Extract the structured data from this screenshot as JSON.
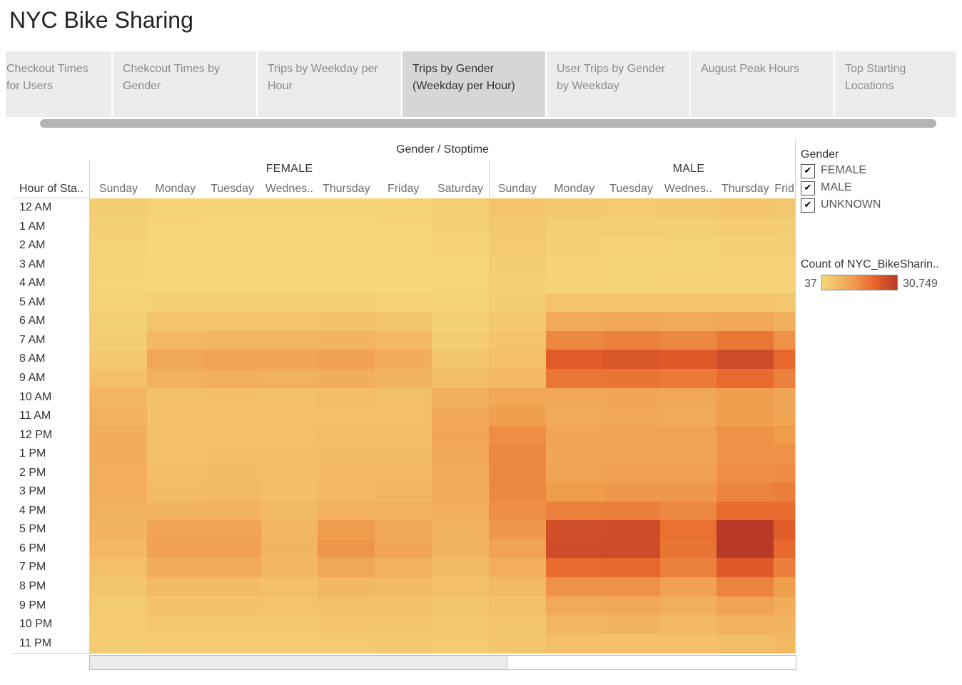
{
  "page": {
    "title": "NYC Bike Sharing"
  },
  "tabs": [
    {
      "line1": "Checkout Times",
      "line2": "for Users",
      "active": false
    },
    {
      "line1": "Chekcout Times by",
      "line2": "Gender",
      "active": false
    },
    {
      "line1": "Trips by Weekday per",
      "line2": "Hour",
      "active": false
    },
    {
      "line1": "Trips by Gender",
      "line2": "(Weekday per Hour)",
      "active": true
    },
    {
      "line1": "User Trips by Gender",
      "line2": "by Weekday",
      "active": false
    },
    {
      "line1": "August Peak Hours",
      "line2": "",
      "active": false
    },
    {
      "line1": "Top Starting",
      "line2": "Locations",
      "active": false
    }
  ],
  "chart_data": {
    "type": "heatmap",
    "title": "Gender / Stoptime",
    "row_header": "Hour of Sta..",
    "rows": [
      "12 AM",
      "1 AM",
      "2 AM",
      "3 AM",
      "4 AM",
      "5 AM",
      "6 AM",
      "7 AM",
      "8 AM",
      "9 AM",
      "10 AM",
      "11 AM",
      "12 PM",
      "1 PM",
      "2 PM",
      "3 PM",
      "4 PM",
      "5 PM",
      "6 PM",
      "7 PM",
      "8 PM",
      "9 PM",
      "10 PM",
      "11 PM"
    ],
    "groups": [
      {
        "name": "FEMALE",
        "columns": [
          "Sunday",
          "Monday",
          "Tuesday",
          "Wednes..",
          "Thursday",
          "Friday",
          "Saturday"
        ]
      },
      {
        "name": "MALE",
        "columns": [
          "Sunday",
          "Monday",
          "Tuesday",
          "Wednes..",
          "Thursday",
          "Frid"
        ]
      }
    ],
    "color_min": 37,
    "color_max": 30749,
    "color_low": "#f5d87a",
    "color_high": "#b83a26",
    "values": [
      [
        2500,
        1200,
        1000,
        1000,
        1000,
        1200,
        2200,
        4500,
        3500,
        3200,
        3500,
        4000,
        3800
      ],
      [
        1800,
        700,
        500,
        500,
        500,
        600,
        1500,
        3600,
        2200,
        1800,
        2000,
        2400,
        2500
      ],
      [
        1300,
        400,
        300,
        300,
        300,
        400,
        1100,
        3000,
        1500,
        1200,
        1300,
        1500,
        1800
      ],
      [
        900,
        300,
        200,
        200,
        200,
        300,
        800,
        2500,
        1100,
        900,
        1000,
        1100,
        1400
      ],
      [
        700,
        300,
        250,
        250,
        250,
        300,
        600,
        2000,
        1200,
        1000,
        1100,
        1200,
        1200
      ],
      [
        900,
        1500,
        1500,
        1500,
        1500,
        1400,
        900,
        2500,
        4500,
        4500,
        4200,
        4500,
        3800
      ],
      [
        1800,
        4500,
        4500,
        4500,
        4600,
        4300,
        1500,
        3500,
        10000,
        10500,
        10000,
        10500,
        9000
      ],
      [
        2500,
        7000,
        7500,
        7500,
        8000,
        7000,
        2500,
        4500,
        16000,
        17000,
        16000,
        18500,
        14500
      ],
      [
        3500,
        10500,
        11500,
        11000,
        12000,
        9500,
        4000,
        5500,
        23000,
        24500,
        23500,
        27000,
        21000
      ],
      [
        5200,
        8500,
        9000,
        8800,
        9500,
        8000,
        6000,
        7000,
        18500,
        19000,
        18000,
        20500,
        17000
      ],
      [
        7500,
        5500,
        5800,
        5500,
        6000,
        5500,
        9000,
        10500,
        10500,
        11000,
        10500,
        12500,
        11000
      ],
      [
        8500,
        5000,
        5200,
        5000,
        5500,
        5200,
        10500,
        12500,
        10000,
        10500,
        10000,
        12500,
        11000
      ],
      [
        9500,
        5200,
        5500,
        5500,
        6000,
        6000,
        11000,
        15000,
        11000,
        11500,
        11500,
        14500,
        13000
      ],
      [
        9500,
        5500,
        5800,
        5800,
        6500,
        6500,
        10500,
        16000,
        11000,
        11500,
        11500,
        14500,
        14500
      ],
      [
        9200,
        5800,
        6200,
        6000,
        7000,
        7000,
        10000,
        16000,
        11500,
        12000,
        12000,
        15000,
        15500
      ],
      [
        9000,
        6200,
        6800,
        5800,
        7000,
        7500,
        9500,
        16000,
        13000,
        13500,
        13500,
        16500,
        17500
      ],
      [
        8500,
        8000,
        8200,
        6800,
        8500,
        8500,
        9000,
        15000,
        17000,
        17500,
        16000,
        20000,
        20000
      ],
      [
        8000,
        11500,
        11500,
        7500,
        13000,
        10500,
        8500,
        13500,
        26000,
        26500,
        19500,
        30749,
        23000
      ],
      [
        7000,
        12000,
        12000,
        7800,
        14000,
        11000,
        8000,
        11500,
        26500,
        26500,
        19000,
        30749,
        21000
      ],
      [
        5500,
        9500,
        9500,
        7200,
        10500,
        8500,
        6500,
        9000,
        20500,
        21000,
        17000,
        23500,
        17500
      ],
      [
        4000,
        6500,
        6500,
        5500,
        7200,
        6500,
        5000,
        7000,
        14500,
        14500,
        12000,
        16500,
        12500
      ],
      [
        3200,
        4800,
        4800,
        4500,
        5200,
        5000,
        4000,
        5500,
        10000,
        10500,
        9000,
        11500,
        9500
      ],
      [
        2800,
        3800,
        3800,
        3600,
        4000,
        4200,
        3500,
        4500,
        7500,
        7800,
        7000,
        8500,
        8000
      ],
      [
        2600,
        2800,
        2800,
        2800,
        3000,
        3500,
        3200,
        4000,
        5500,
        5500,
        5500,
        6000,
        7000
      ]
    ]
  },
  "legend": {
    "title": "Gender",
    "items": [
      {
        "label": "FEMALE",
        "checked": true
      },
      {
        "label": "MALE",
        "checked": true
      },
      {
        "label": "UNKNOWN",
        "checked": true
      }
    ],
    "checkmark": "✔",
    "color_title": "Count of NYC_BikeSharin..",
    "min_label": "37",
    "max_label": "30,749"
  }
}
